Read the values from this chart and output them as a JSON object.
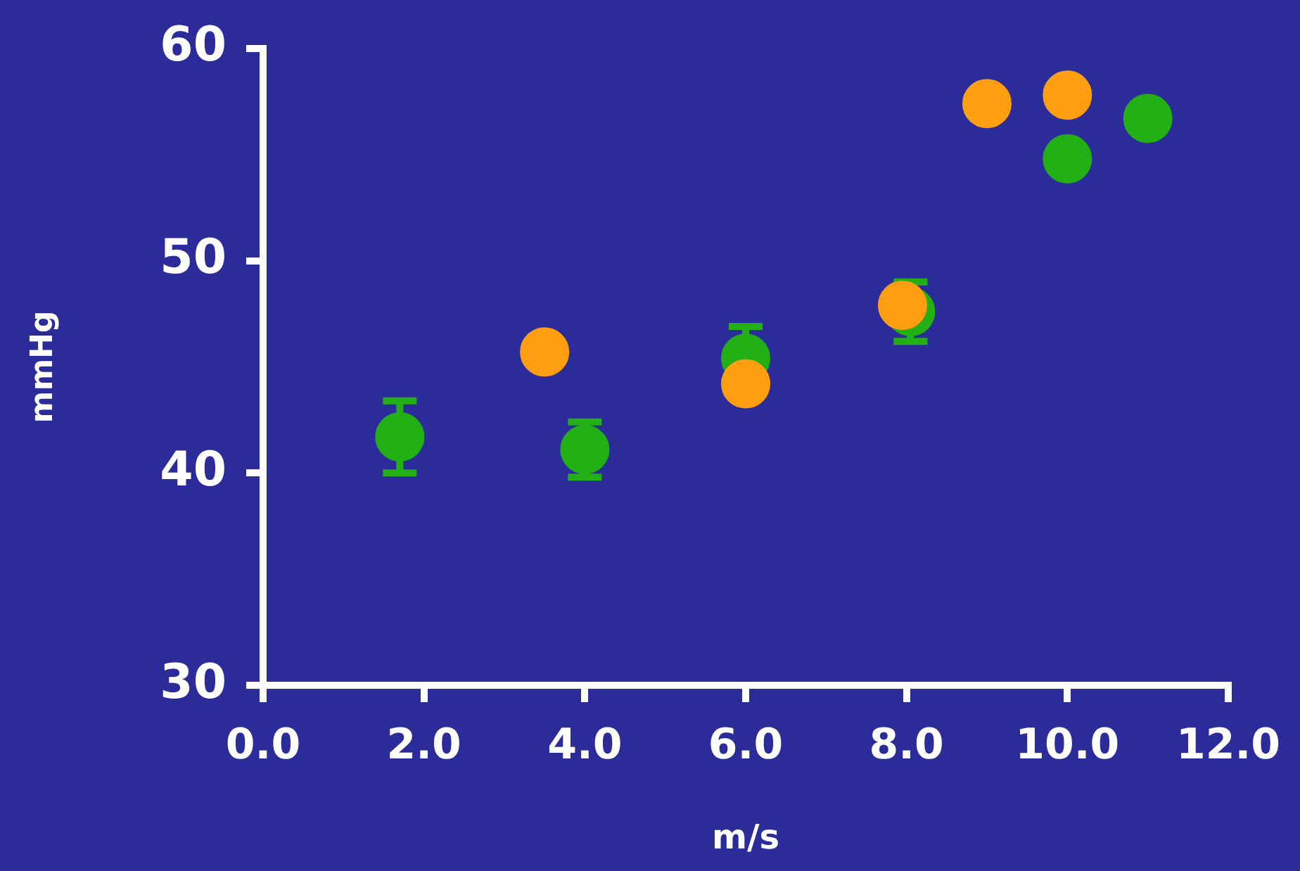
{
  "chart_data": {
    "type": "scatter",
    "xlabel": "m/s",
    "ylabel": "mmHg",
    "xlim": [
      0,
      12
    ],
    "xticks": [
      {
        "value": 0,
        "label": "0.0"
      },
      {
        "value": 2,
        "label": "2.0"
      },
      {
        "value": 4,
        "label": "4.0"
      },
      {
        "value": 6,
        "label": "6.0"
      },
      {
        "value": 8,
        "label": "8.0"
      },
      {
        "value": 10,
        "label": "10.0"
      },
      {
        "value": 12,
        "label": "12.0"
      }
    ],
    "ylim": [
      30,
      60
    ],
    "yticks": [
      30,
      40,
      50,
      60
    ],
    "grid": false,
    "legend": false,
    "marker": "circle",
    "series": [
      {
        "color": "#22b014",
        "x": [
          1.7,
          4,
          6,
          8.05,
          10,
          11
        ],
        "values": [
          41.7,
          41.1,
          45.4,
          47.6,
          54.8,
          56.7
        ],
        "errors": [
          1.7,
          1.3,
          1.5,
          1.4,
          null,
          null
        ]
      },
      {
        "color": "#ff9e10",
        "x": [
          3.5,
          6,
          7.95,
          9,
          10
        ],
        "values": [
          45.7,
          44.2,
          47.9,
          57.4,
          57.8
        ]
      }
    ]
  }
}
